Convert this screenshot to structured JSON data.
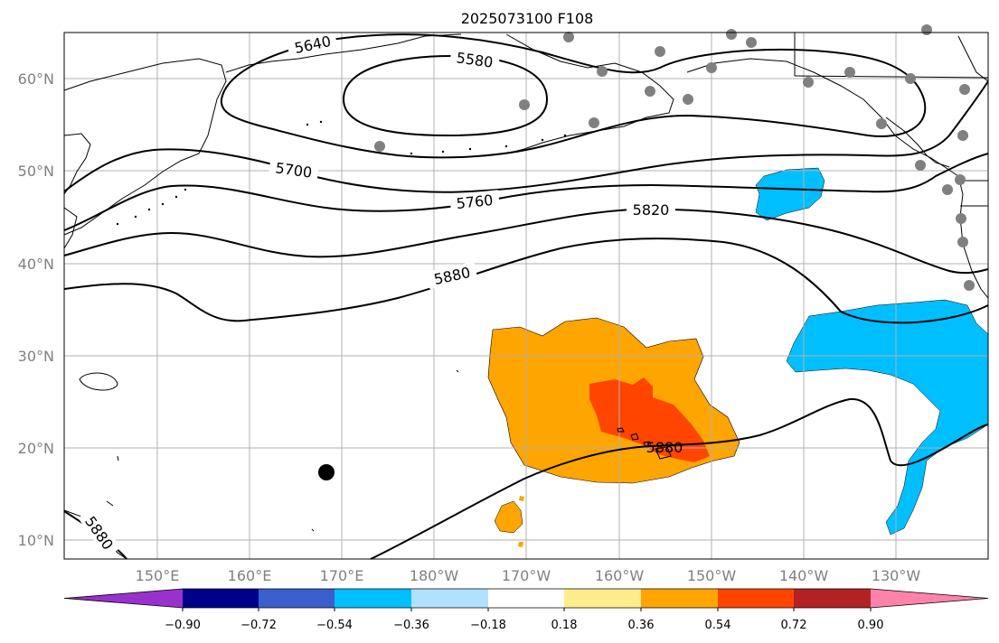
{
  "title": "2025073100 F108",
  "lon_ticks": [
    "150°E",
    "160°E",
    "170°E",
    "180°W",
    "170°W",
    "160°W",
    "150°W",
    "140°W",
    "130°W"
  ],
  "lat_ticks": [
    "10°N",
    "20°N",
    "30°N",
    "40°N",
    "50°N",
    "60°N"
  ],
  "contour_labels": [
    "5640",
    "5580",
    "5700",
    "5760",
    "5820",
    "5880",
    "5880",
    "5880"
  ],
  "colorbar": {
    "tick_labels": [
      "−0.90",
      "−0.72",
      "−0.54",
      "−0.36",
      "−0.18",
      "0.18",
      "0.36",
      "0.54",
      "0.72",
      "0.90"
    ],
    "colors": [
      "#9932cc",
      "#00008b",
      "#3a5fcd",
      "#00bfff",
      "#b0e2ff",
      "#ffffff",
      "#ffec8b",
      "#ffa500",
      "#ff4500",
      "#b22222",
      "#ff82ab"
    ]
  },
  "colors": {
    "negative_fill": "#00bfff",
    "positive_fill": "#ffa500",
    "strong_positive_fill": "#ff4500",
    "station_marker": "#808080",
    "storm_marker": "#000000",
    "grid": "#b0b0b0"
  }
}
